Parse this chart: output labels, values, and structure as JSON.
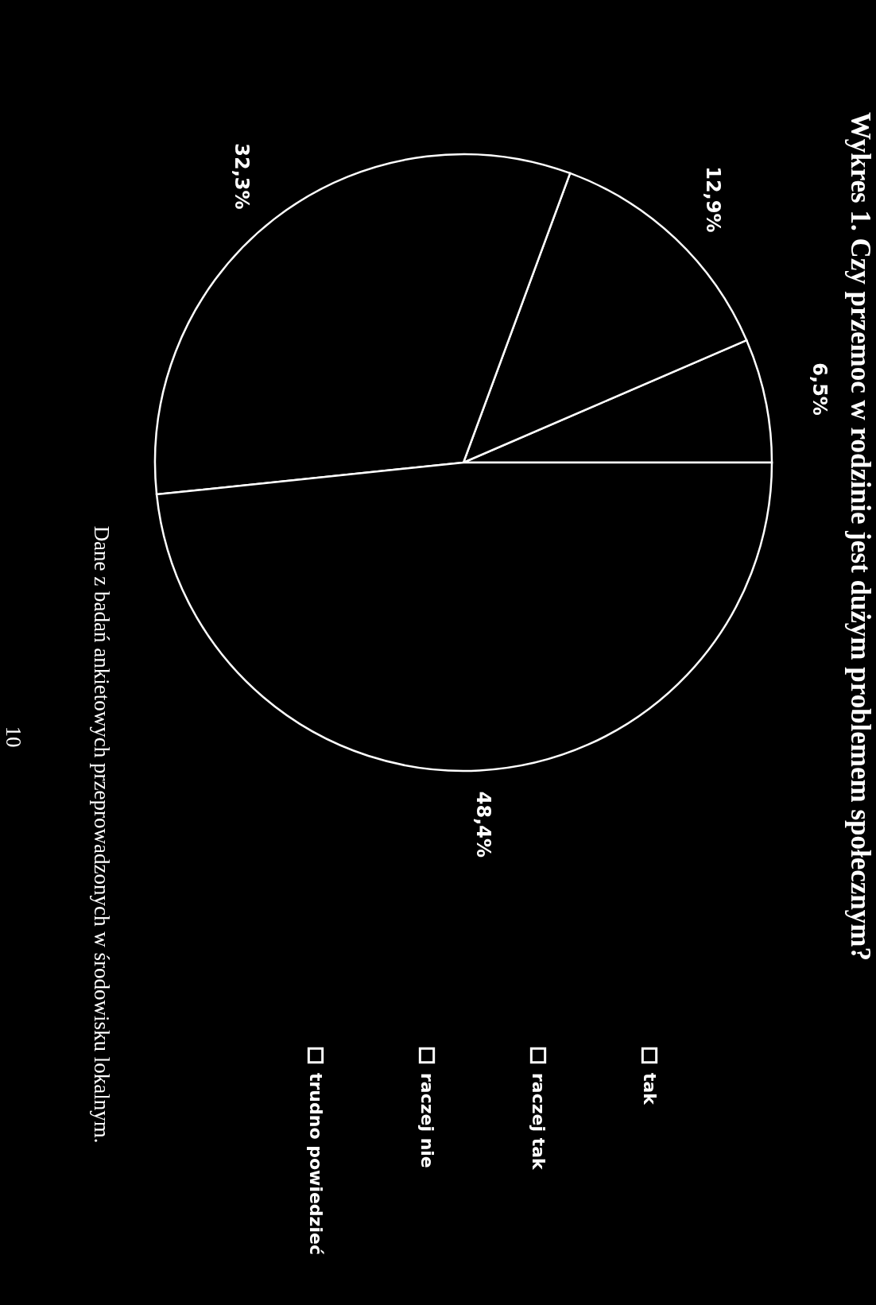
{
  "chart_data": {
    "type": "pie",
    "title": "Wykres 1. Czy przemoc w rodzinie jest dużym problemem społecznym?",
    "categories": [
      "tak",
      "raczej tak",
      "raczej nie",
      "trudno powiedzieć"
    ],
    "values": [
      6.5,
      12.9,
      32.3,
      48.4
    ],
    "value_labels": [
      "6,5%",
      "12,9%",
      "32,3%",
      "48,4%"
    ],
    "colors": [
      "#000000",
      "#000000",
      "#000000",
      "#000000"
    ],
    "legend": "bottom",
    "annotations": [
      "Dane z badań ankietowych przeprowadzonych w środowisku lokalnym.",
      "10"
    ]
  }
}
